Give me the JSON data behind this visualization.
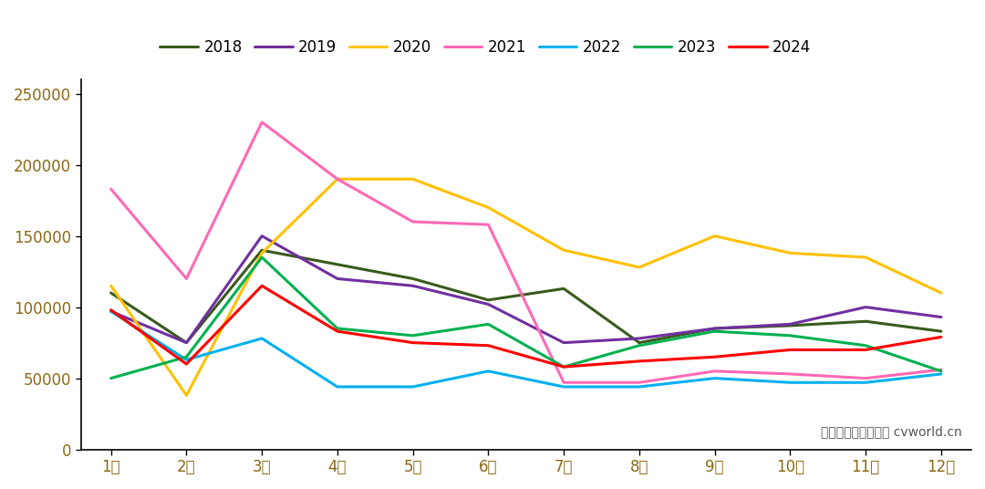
{
  "series": {
    "2018": [
      110000,
      75000,
      140000,
      130000,
      120000,
      105000,
      113000,
      75000,
      85000,
      87000,
      90000,
      83000
    ],
    "2019": [
      97000,
      75000,
      150000,
      120000,
      115000,
      102000,
      75000,
      78000,
      85000,
      88000,
      100000,
      93000
    ],
    "2020": [
      115000,
      38000,
      138000,
      190000,
      190000,
      170000,
      140000,
      128000,
      150000,
      138000,
      135000,
      110000
    ],
    "2021": [
      183000,
      120000,
      230000,
      190000,
      160000,
      158000,
      47000,
      47000,
      55000,
      53000,
      50000,
      56000
    ],
    "2022": [
      97000,
      63000,
      78000,
      44000,
      44000,
      55000,
      44000,
      44000,
      50000,
      47000,
      47000,
      53000
    ],
    "2023": [
      50000,
      65000,
      135000,
      85000,
      80000,
      88000,
      58000,
      73000,
      83000,
      80000,
      73000,
      55000
    ],
    "2024": [
      98000,
      60000,
      115000,
      83000,
      75000,
      73000,
      58000,
      62000,
      65000,
      70000,
      70000,
      79000
    ]
  },
  "colors": {
    "2018": "#3a5a1c",
    "2019": "#7030a0",
    "2020": "#ffc000",
    "2021": "#ff69b4",
    "2022": "#00b0f0",
    "2023": "#00b050",
    "2024": "#ff0000"
  },
  "months": [
    "1月",
    "2月",
    "3月",
    "4月",
    "5月",
    "6月",
    "7月",
    "8月",
    "9月",
    "10月",
    "11月",
    "12月"
  ],
  "ylim": [
    0,
    260000
  ],
  "yticks": [
    0,
    50000,
    100000,
    150000,
    200000,
    250000
  ],
  "watermark": "制图：第一商用车网 cvworld.cn",
  "background_color": "#ffffff",
  "line_width": 2.2,
  "legend_order": [
    "2018",
    "2019",
    "2020",
    "2021",
    "2022",
    "2023",
    "2024"
  ],
  "tick_color": "#8B6914",
  "axis_label_color": "#8B6914"
}
